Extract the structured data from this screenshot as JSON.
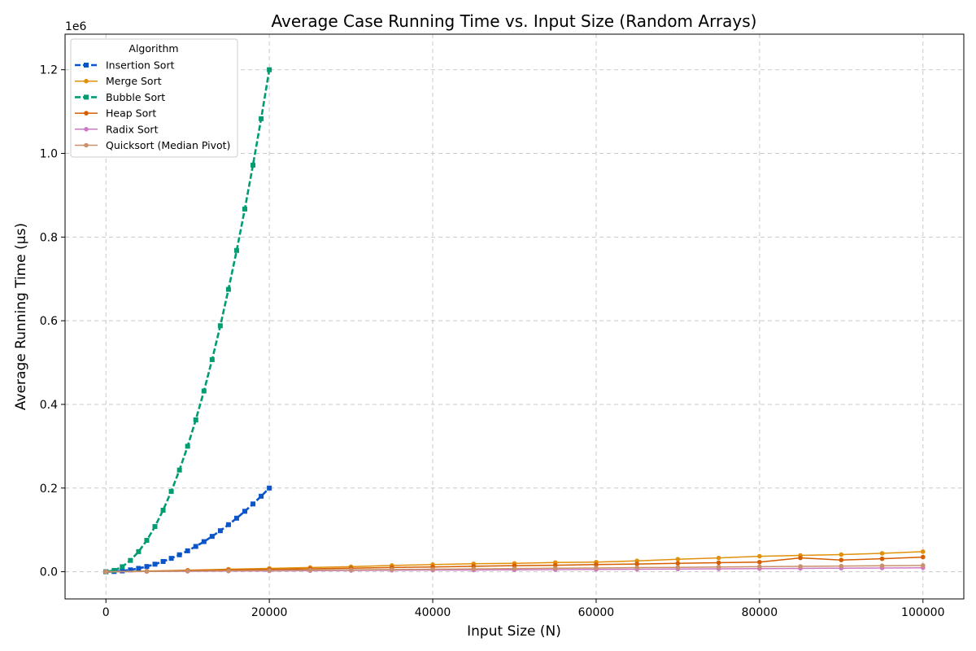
{
  "chart_data": {
    "type": "line",
    "title": "Average Case Running Time vs. Input Size (Random Arrays)",
    "xlabel": "Input Size (N)",
    "ylabel": "Average Running Time (μs)",
    "y_offset_label": "1e6",
    "xlim": [
      -5000,
      105000
    ],
    "ylim": [
      -65000,
      1285000
    ],
    "xticks": [
      0,
      20000,
      40000,
      60000,
      80000,
      100000
    ],
    "xtick_labels": [
      "0",
      "20000",
      "40000",
      "60000",
      "80000",
      "100000"
    ],
    "yticks": [
      0,
      200000,
      400000,
      600000,
      800000,
      1000000,
      1200000
    ],
    "ytick_labels": [
      "0.0",
      "0.2",
      "0.4",
      "0.6",
      "0.8",
      "1.0",
      "1.2"
    ],
    "grid": true,
    "legend": {
      "title": "Algorithm",
      "placement": "upper-left"
    },
    "series": [
      {
        "name": "Insertion Sort",
        "color": "#0b55c9",
        "dash": "dashed",
        "marker": "square",
        "x": [
          0,
          1000,
          2000,
          3000,
          4000,
          5000,
          6000,
          7000,
          8000,
          9000,
          10000,
          11000,
          12000,
          13000,
          14000,
          15000,
          16000,
          17000,
          18000,
          19000,
          20000
        ],
        "values": [
          0,
          500,
          2000,
          4500,
          8000,
          12500,
          18000,
          24500,
          32000,
          40500,
          50000,
          60500,
          72000,
          84500,
          98000,
          112500,
          128000,
          144500,
          162000,
          180500,
          200000
        ]
      },
      {
        "name": "Merge Sort",
        "color": "#e0900a",
        "dash": "solid",
        "marker": "circle",
        "x": [
          0,
          5000,
          10000,
          15000,
          20000,
          25000,
          30000,
          35000,
          40000,
          45000,
          50000,
          55000,
          60000,
          65000,
          70000,
          75000,
          80000,
          85000,
          90000,
          95000,
          100000
        ],
        "values": [
          0,
          1500,
          3500,
          6000,
          8000,
          10000,
          12000,
          15000,
          17000,
          19000,
          20000,
          22000,
          23000,
          26000,
          30000,
          33000,
          37000,
          39000,
          41000,
          44000,
          48000
        ]
      },
      {
        "name": "Bubble Sort",
        "color": "#029c73",
        "dash": "dashed",
        "marker": "square",
        "x": [
          0,
          1000,
          2000,
          3000,
          4000,
          5000,
          6000,
          7000,
          8000,
          9000,
          10000,
          11000,
          12000,
          13000,
          14000,
          15000,
          16000,
          17000,
          18000,
          19000,
          20000
        ],
        "values": [
          0,
          3000,
          12000,
          27000,
          48000,
          75000,
          108000,
          147000,
          192000,
          243000,
          300000,
          363000,
          432000,
          507000,
          588000,
          675000,
          768000,
          867000,
          972000,
          1083000,
          1200000
        ]
      },
      {
        "name": "Heap Sort",
        "color": "#d45e00",
        "dash": "solid",
        "marker": "circle",
        "x": [
          0,
          5000,
          10000,
          15000,
          20000,
          25000,
          30000,
          35000,
          40000,
          45000,
          50000,
          55000,
          60000,
          65000,
          70000,
          75000,
          80000,
          85000,
          90000,
          95000,
          100000
        ],
        "values": [
          0,
          1000,
          3000,
          4500,
          5500,
          7000,
          8500,
          10000,
          11500,
          13000,
          14500,
          15500,
          17000,
          18500,
          20000,
          21500,
          23000,
          33000,
          28000,
          31000,
          35000
        ]
      },
      {
        "name": "Radix Sort",
        "color": "#cc79c4",
        "dash": "solid",
        "marker": "circle",
        "x": [
          0,
          5000,
          10000,
          15000,
          20000,
          25000,
          30000,
          35000,
          40000,
          45000,
          50000,
          55000,
          60000,
          65000,
          70000,
          75000,
          80000,
          85000,
          90000,
          95000,
          100000
        ],
        "values": [
          0,
          500,
          1000,
          1500,
          2000,
          2500,
          3000,
          3500,
          4000,
          4000,
          4500,
          5000,
          5500,
          6000,
          6500,
          7000,
          7500,
          8000,
          8500,
          9000,
          9500
        ]
      },
      {
        "name": "Quicksort (Median Pivot)",
        "color": "#c9916b",
        "dash": "solid",
        "marker": "circle",
        "x": [
          0,
          5000,
          10000,
          15000,
          20000,
          25000,
          30000,
          35000,
          40000,
          45000,
          50000,
          55000,
          60000,
          65000,
          70000,
          75000,
          80000,
          85000,
          90000,
          95000,
          100000
        ],
        "values": [
          0,
          700,
          1500,
          2300,
          3000,
          3800,
          4500,
          5300,
          6000,
          6800,
          7500,
          8300,
          9000,
          9800,
          10500,
          11300,
          12000,
          12800,
          13500,
          14300,
          15000
        ]
      }
    ]
  }
}
